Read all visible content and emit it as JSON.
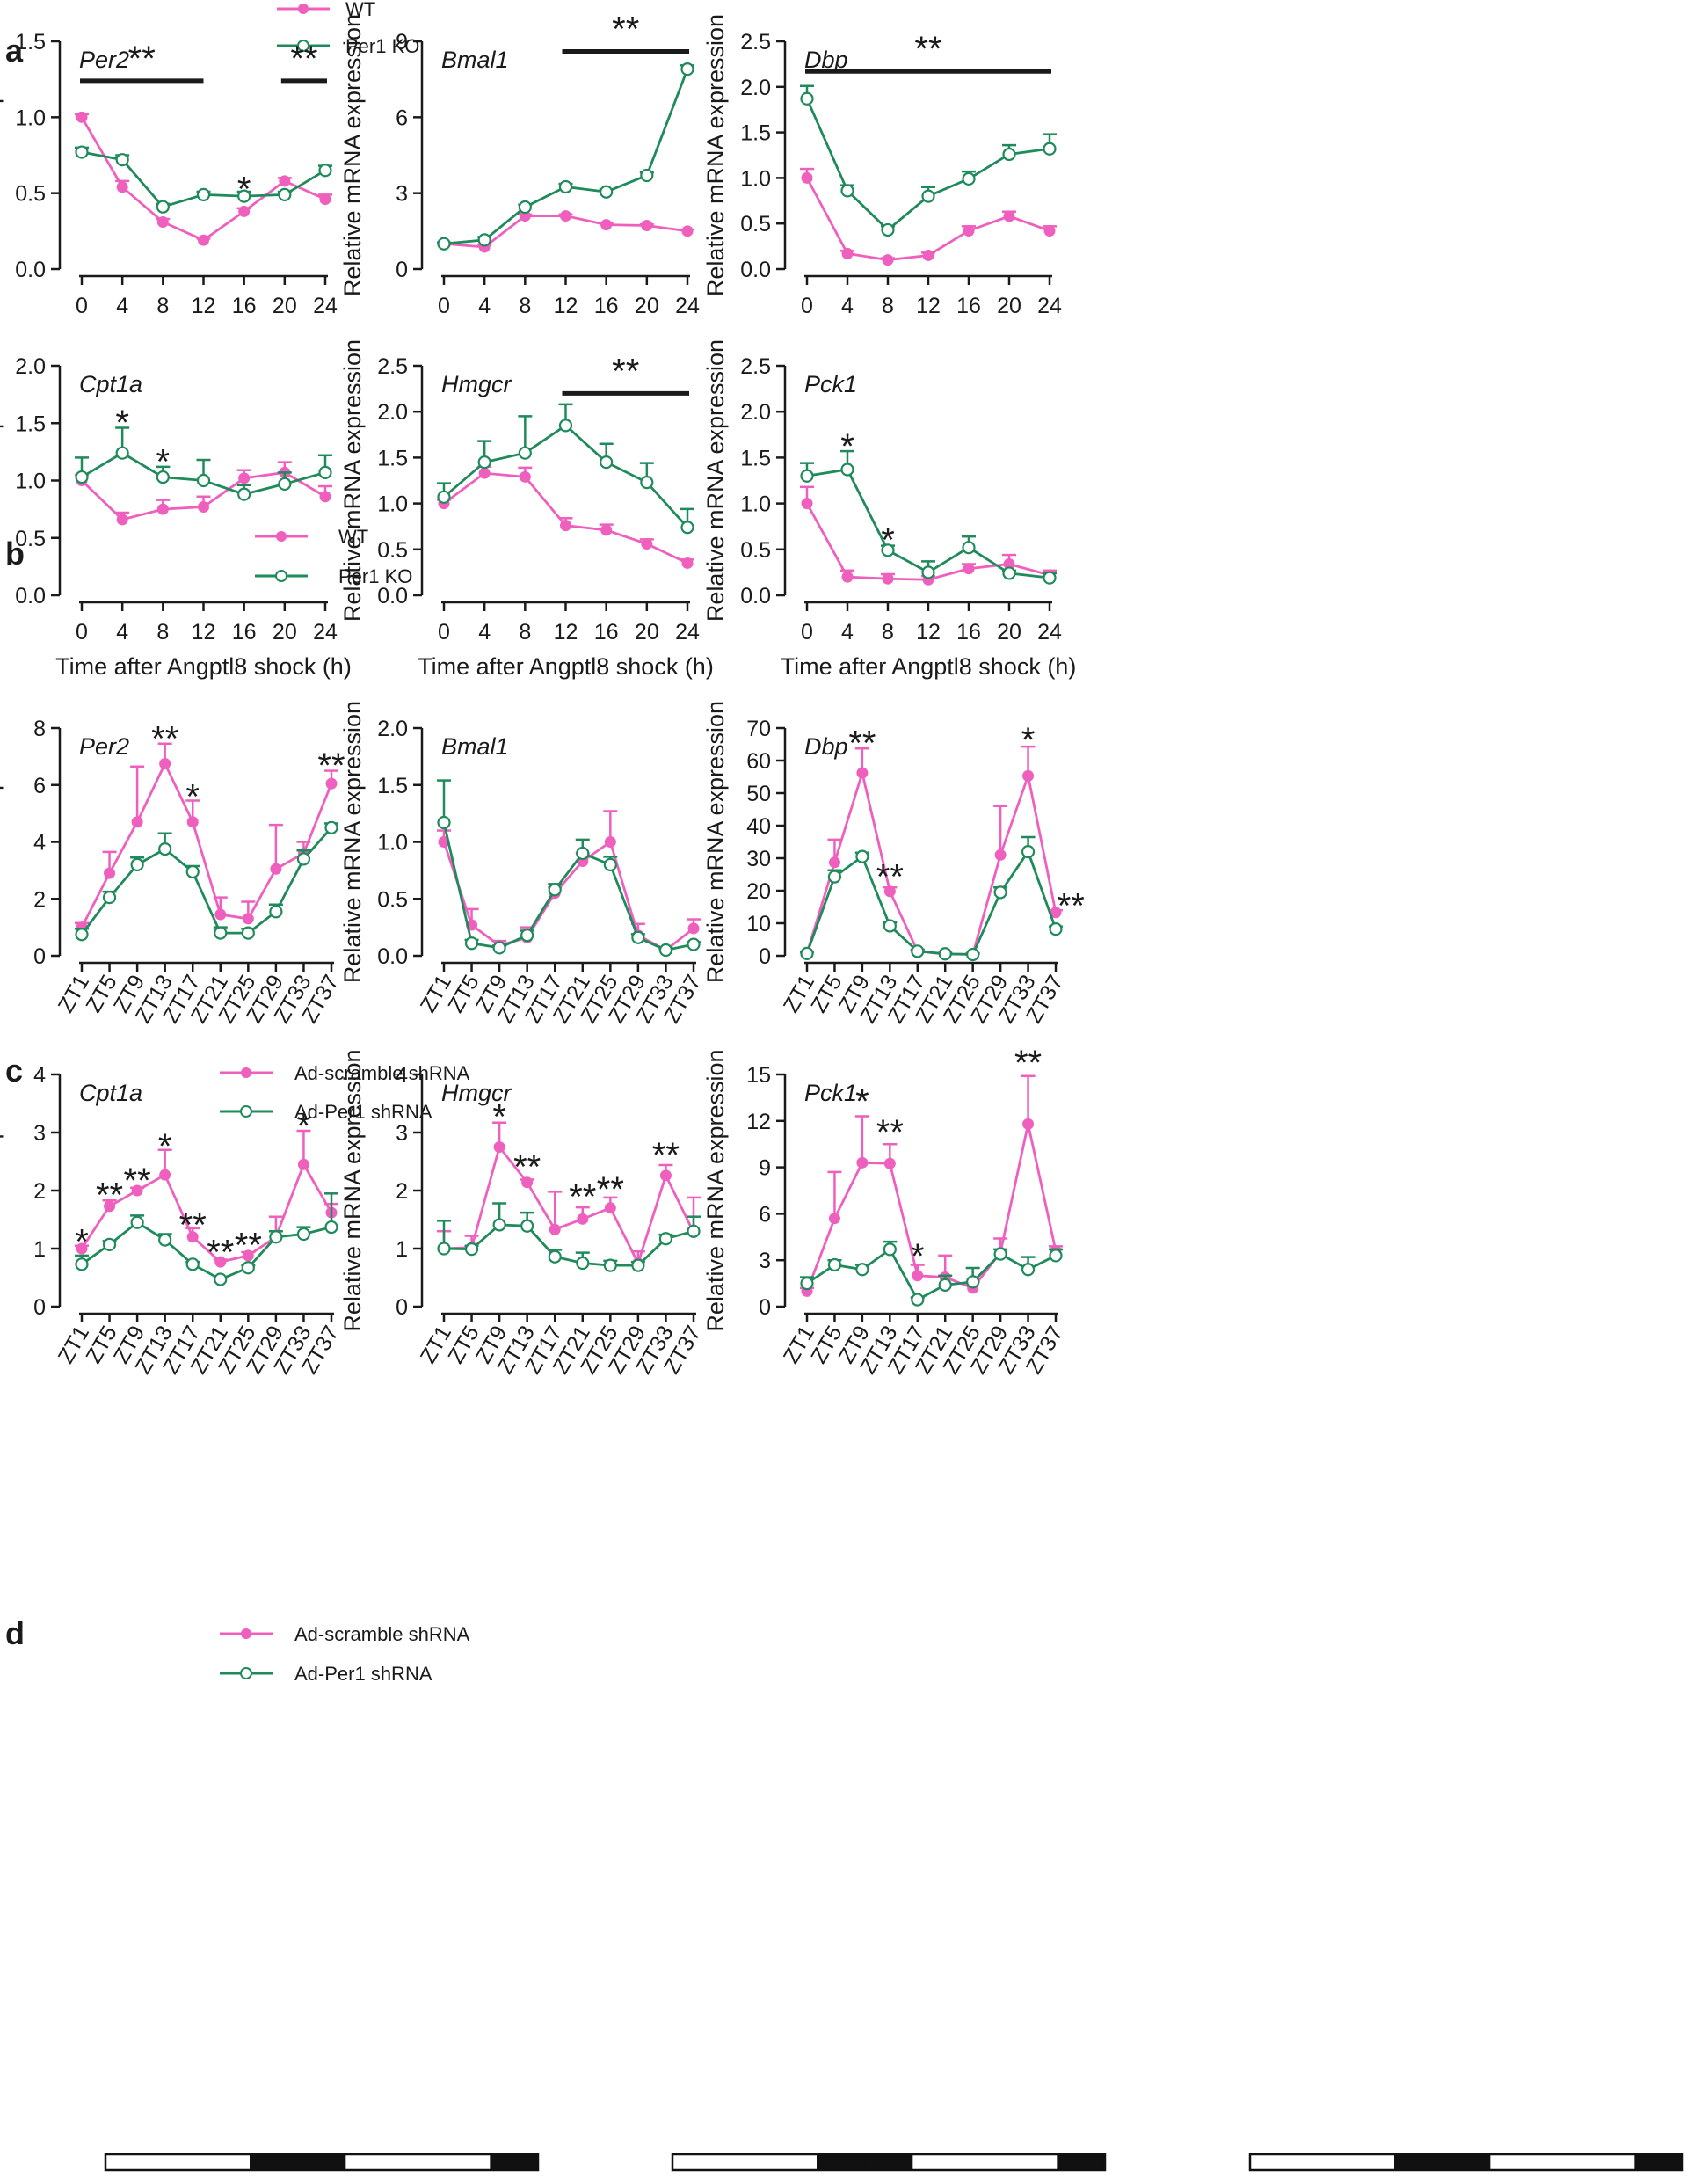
{
  "colors": {
    "wt": "#ee5fbe",
    "ko": "#1f8a5a",
    "axis": "#1a1a1a"
  },
  "panel_labels": [
    "a",
    "b",
    "c",
    "d"
  ],
  "legends": {
    "ab": [
      "WT",
      "Per1 KO"
    ],
    "cd": [
      "Ad-scramble shRNA",
      "Ad-Per1 shRNA"
    ]
  },
  "ylabel": "Relative mRNA expression",
  "xlabel_ab": "Time after Angptl8 shock (h)",
  "chart_data": [
    {
      "type": "line",
      "panel": "a",
      "title": "Per2",
      "categories": [
        "0",
        "4",
        "8",
        "12",
        "16",
        "20",
        "24"
      ],
      "ylim": [
        0,
        1.5
      ],
      "yticks": [
        "0.0",
        "0.5",
        "1.0",
        "1.5"
      ],
      "series": [
        {
          "name": "WT",
          "values": [
            1.0,
            0.54,
            0.31,
            0.19,
            0.38,
            0.58,
            0.46
          ],
          "err": [
            0.02,
            0.04,
            0.02,
            0.01,
            0.02,
            0.02,
            0.03
          ]
        },
        {
          "name": "Per1 KO",
          "values": [
            0.77,
            0.72,
            0.41,
            0.49,
            0.48,
            0.49,
            0.65
          ],
          "err": [
            0.03,
            0.03,
            0.02,
            0.02,
            0.03,
            0.02,
            0.03
          ]
        }
      ],
      "annotations": [
        {
          "text": "**",
          "type": "bar",
          "from": 0,
          "to": 3,
          "y": 1.24
        },
        {
          "text": "**",
          "type": "bar",
          "from": 5,
          "to": 6,
          "y": 1.24
        },
        {
          "text": "*",
          "type": "point",
          "at": 4,
          "y": 0.53
        }
      ]
    },
    {
      "type": "line",
      "panel": "a",
      "title": "Bmal1",
      "categories": [
        "0",
        "4",
        "8",
        "12",
        "16",
        "20",
        "24"
      ],
      "ylim": [
        0,
        9
      ],
      "yticks": [
        "0",
        "3",
        "6",
        "9"
      ],
      "series": [
        {
          "name": "WT",
          "values": [
            1.0,
            0.87,
            2.1,
            2.1,
            1.75,
            1.72,
            1.5
          ],
          "err": [
            0.05,
            0.08,
            0.06,
            0.06,
            0.05,
            0.05,
            0.06
          ]
        },
        {
          "name": "Per1 KO",
          "values": [
            1.0,
            1.15,
            2.45,
            3.25,
            3.05,
            3.7,
            7.9
          ],
          "err": [
            0.05,
            0.12,
            0.1,
            0.12,
            0.1,
            0.12,
            0.15
          ]
        }
      ],
      "annotations": [
        {
          "text": "**",
          "type": "bar",
          "from": 3,
          "to": 6,
          "y": 8.6
        }
      ]
    },
    {
      "type": "line",
      "panel": "a",
      "title": "Dbp",
      "categories": [
        "0",
        "4",
        "8",
        "12",
        "16",
        "20",
        "24"
      ],
      "ylim": [
        0,
        2.5
      ],
      "yticks": [
        "0.0",
        "0.5",
        "1.0",
        "1.5",
        "2.0",
        "2.5"
      ],
      "series": [
        {
          "name": "WT",
          "values": [
            1.0,
            0.17,
            0.1,
            0.15,
            0.42,
            0.58,
            0.42
          ],
          "err": [
            0.1,
            0.03,
            0.02,
            0.03,
            0.05,
            0.05,
            0.05
          ]
        },
        {
          "name": "Per1 KO",
          "values": [
            1.87,
            0.86,
            0.43,
            0.8,
            0.99,
            1.26,
            1.32
          ],
          "err": [
            0.14,
            0.06,
            0.04,
            0.1,
            0.08,
            0.1,
            0.16
          ]
        }
      ],
      "annotations": [
        {
          "text": "**",
          "type": "bar",
          "from": 0,
          "to": 6,
          "y": 2.17
        }
      ]
    },
    {
      "type": "line",
      "panel": "b",
      "title": "Cpt1a",
      "categories": [
        "0",
        "4",
        "8",
        "12",
        "16",
        "20",
        "24"
      ],
      "xlabel": "Time after Angptl8 shock (h)",
      "ylim": [
        0,
        2.0
      ],
      "yticks": [
        "0.0",
        "0.5",
        "1.0",
        "1.5",
        "2.0"
      ],
      "series": [
        {
          "name": "WT",
          "values": [
            1.0,
            0.66,
            0.75,
            0.77,
            1.02,
            1.07,
            0.86
          ],
          "err": [
            0.05,
            0.06,
            0.08,
            0.09,
            0.07,
            0.09,
            0.09
          ]
        },
        {
          "name": "Per1 KO",
          "values": [
            1.03,
            1.24,
            1.03,
            1.0,
            0.88,
            0.97,
            1.07
          ],
          "err": [
            0.17,
            0.22,
            0.09,
            0.18,
            0.08,
            0.1,
            0.15
          ]
        }
      ],
      "annotations": [
        {
          "text": "*",
          "type": "point",
          "at": 1,
          "y": 1.51
        },
        {
          "text": "*",
          "type": "point",
          "at": 2,
          "y": 1.17
        }
      ]
    },
    {
      "type": "line",
      "panel": "b",
      "title": "Hmgcr",
      "categories": [
        "0",
        "4",
        "8",
        "12",
        "16",
        "20",
        "24"
      ],
      "xlabel": "Time after Angptl8 shock (h)",
      "ylim": [
        0,
        2.5
      ],
      "yticks": [
        "0.0",
        "0.5",
        "1.0",
        "1.5",
        "2.0",
        "2.5"
      ],
      "series": [
        {
          "name": "WT",
          "values": [
            1.0,
            1.33,
            1.29,
            0.76,
            0.71,
            0.56,
            0.35
          ],
          "err": [
            0.04,
            0.07,
            0.1,
            0.08,
            0.06,
            0.05,
            0.04
          ]
        },
        {
          "name": "Per1 KO",
          "values": [
            1.07,
            1.45,
            1.55,
            1.85,
            1.45,
            1.23,
            0.74
          ],
          "err": [
            0.15,
            0.23,
            0.4,
            0.23,
            0.2,
            0.21,
            0.2
          ]
        }
      ],
      "annotations": [
        {
          "text": "**",
          "type": "bar",
          "from": 3,
          "to": 6,
          "y": 2.2
        }
      ]
    },
    {
      "type": "line",
      "panel": "b",
      "title": "Pck1",
      "categories": [
        "0",
        "4",
        "8",
        "12",
        "16",
        "20",
        "24"
      ],
      "xlabel": "Time after Angptl8 shock (h)",
      "ylim": [
        0,
        2.5
      ],
      "yticks": [
        "0.0",
        "0.5",
        "1.0",
        "1.5",
        "2.0",
        "2.5"
      ],
      "series": [
        {
          "name": "WT",
          "values": [
            1.0,
            0.2,
            0.18,
            0.17,
            0.29,
            0.34,
            0.22
          ],
          "err": [
            0.18,
            0.07,
            0.05,
            0.04,
            0.05,
            0.1,
            0.05
          ]
        },
        {
          "name": "Per1 KO",
          "values": [
            1.3,
            1.37,
            0.49,
            0.25,
            0.52,
            0.24,
            0.19
          ],
          "err": [
            0.14,
            0.2,
            0.05,
            0.12,
            0.12,
            0.03,
            0.05
          ]
        }
      ],
      "annotations": [
        {
          "text": "*",
          "type": "point",
          "at": 1,
          "y": 1.63
        },
        {
          "text": "*",
          "type": "point",
          "at": 2,
          "y": 0.61
        }
      ]
    },
    {
      "type": "line",
      "panel": "c",
      "title": "Per2",
      "categories": [
        "ZT1",
        "ZT5",
        "ZT9",
        "ZT13",
        "ZT17",
        "ZT21",
        "ZT25",
        "ZT29",
        "ZT33",
        "ZT37"
      ],
      "ylim": [
        0,
        8
      ],
      "yticks": [
        "0",
        "2",
        "4",
        "6",
        "8"
      ],
      "series": [
        {
          "name": "Ad-scramble shRNA",
          "values": [
            1.0,
            2.9,
            4.7,
            6.75,
            4.7,
            1.45,
            1.3,
            3.05,
            3.6,
            6.05
          ],
          "err": [
            0.15,
            0.75,
            1.95,
            0.7,
            0.75,
            0.6,
            0.6,
            1.55,
            0.4,
            0.45
          ]
        },
        {
          "name": "Ad-Per1 shRNA",
          "values": [
            0.75,
            2.05,
            3.2,
            3.75,
            2.95,
            0.8,
            0.8,
            1.55,
            3.4,
            4.5
          ],
          "err": [
            0.2,
            0.2,
            0.25,
            0.55,
            0.2,
            0.2,
            0.15,
            0.25,
            0.3,
            0.15
          ]
        }
      ],
      "annotations": [
        {
          "text": "**",
          "type": "point",
          "at": 3,
          "y": 7.65
        },
        {
          "text": "*",
          "type": "point",
          "at": 4,
          "y": 5.6
        },
        {
          "text": "**",
          "type": "point",
          "at": 9,
          "y": 6.7
        }
      ]
    },
    {
      "type": "line",
      "panel": "c",
      "title": "Bmal1",
      "categories": [
        "ZT1",
        "ZT5",
        "ZT9",
        "ZT13",
        "ZT17",
        "ZT21",
        "ZT25",
        "ZT29",
        "ZT33",
        "ZT37"
      ],
      "ylim": [
        0,
        2.0
      ],
      "yticks": [
        "0.0",
        "0.5",
        "1.0",
        "1.5",
        "2.0"
      ],
      "series": [
        {
          "name": "Ad-scramble shRNA",
          "values": [
            1.0,
            0.27,
            0.09,
            0.16,
            0.55,
            0.83,
            1.0,
            0.18,
            0.05,
            0.24
          ],
          "err": [
            0.1,
            0.14,
            0.04,
            0.09,
            0.05,
            0.07,
            0.27,
            0.1,
            0.02,
            0.08
          ]
        },
        {
          "name": "Ad-Per1 shRNA",
          "values": [
            1.17,
            0.11,
            0.07,
            0.18,
            0.58,
            0.9,
            0.8,
            0.16,
            0.05,
            0.1
          ],
          "err": [
            0.37,
            0.03,
            0.02,
            0.04,
            0.05,
            0.12,
            0.07,
            0.03,
            0.01,
            0.02
          ]
        }
      ],
      "annotations": []
    },
    {
      "type": "line",
      "panel": "c",
      "title": "Dbp",
      "categories": [
        "ZT1",
        "ZT5",
        "ZT9",
        "ZT13",
        "ZT17",
        "ZT21",
        "ZT25",
        "ZT29",
        "ZT33",
        "ZT37"
      ],
      "ylim": [
        0,
        70
      ],
      "yticks": [
        "0",
        "10",
        "20",
        "30",
        "40",
        "50",
        "60",
        "70"
      ],
      "series": [
        {
          "name": "Ad-scramble shRNA",
          "values": [
            0.8,
            28.7,
            56.2,
            19.8,
            1.4,
            0.5,
            0.5,
            31.0,
            55.3,
            13.3
          ],
          "err": [
            0.5,
            7.0,
            7.5,
            1.2,
            0.5,
            0.3,
            0.3,
            15.0,
            9.0,
            0.7
          ]
        },
        {
          "name": "Ad-Per1 shRNA",
          "values": [
            0.7,
            24.3,
            30.5,
            9.2,
            1.4,
            0.6,
            0.4,
            19.5,
            32.0,
            8.2
          ],
          "err": [
            0.4,
            2.0,
            1.2,
            1.0,
            0.5,
            0.3,
            0.3,
            1.5,
            4.5,
            0.8
          ]
        }
      ],
      "annotations": [
        {
          "text": "**",
          "type": "point",
          "at": 2,
          "y": 65.5
        },
        {
          "text": "**",
          "type": "point",
          "at": 3,
          "y": 24.5
        },
        {
          "text": "*",
          "type": "point",
          "at": 8,
          "y": 66.5
        },
        {
          "text": "**",
          "type": "point",
          "at": 9.55,
          "y": 15.5
        }
      ]
    },
    {
      "type": "line",
      "panel": "d",
      "title": "Cpt1a",
      "categories": [
        "ZT1",
        "ZT5",
        "ZT9",
        "ZT13",
        "ZT17",
        "ZT21",
        "ZT25",
        "ZT29",
        "ZT33",
        "ZT37"
      ],
      "ylim": [
        0,
        4
      ],
      "yticks": [
        "0",
        "1",
        "2",
        "3",
        "4"
      ],
      "series": [
        {
          "name": "Ad-scramble shRNA",
          "values": [
            1.0,
            1.73,
            2.0,
            2.27,
            1.2,
            0.77,
            0.88,
            1.2,
            2.45,
            1.62
          ],
          "err": [
            0.05,
            0.1,
            0.05,
            0.43,
            0.15,
            0.04,
            0.06,
            0.35,
            0.58,
            0.15
          ]
        },
        {
          "name": "Ad-Per1 shRNA",
          "values": [
            0.73,
            1.07,
            1.45,
            1.15,
            0.73,
            0.47,
            0.67,
            1.2,
            1.25,
            1.37
          ],
          "err": [
            0.15,
            0.06,
            0.12,
            0.1,
            0.04,
            0.04,
            0.04,
            0.1,
            0.12,
            0.58
          ]
        }
      ],
      "annotations": [
        {
          "text": "*",
          "type": "point",
          "at": 0,
          "y": 1.13
        },
        {
          "text": "**",
          "type": "point",
          "at": 1,
          "y": 1.93
        },
        {
          "text": "**",
          "type": "point",
          "at": 2,
          "y": 2.18
        },
        {
          "text": "*",
          "type": "point",
          "at": 3,
          "y": 2.77
        },
        {
          "text": "**",
          "type": "point",
          "at": 4,
          "y": 1.42
        },
        {
          "text": "**",
          "type": "point",
          "at": 5,
          "y": 0.95
        },
        {
          "text": "**",
          "type": "point",
          "at": 6,
          "y": 1.07
        },
        {
          "text": "*",
          "type": "point",
          "at": 8,
          "y": 3.12
        }
      ]
    },
    {
      "type": "line",
      "panel": "d",
      "title": "Hmgcr",
      "categories": [
        "ZT1",
        "ZT5",
        "ZT9",
        "ZT13",
        "ZT17",
        "ZT21",
        "ZT25",
        "ZT29",
        "ZT33",
        "ZT37"
      ],
      "ylim": [
        0,
        4
      ],
      "yticks": [
        "0",
        "1",
        "2",
        "3",
        "4"
      ],
      "series": [
        {
          "name": "Ad-scramble shRNA",
          "values": [
            1.0,
            1.02,
            2.75,
            2.14,
            1.33,
            1.51,
            1.7,
            0.75,
            2.26,
            1.28
          ],
          "err": [
            0.3,
            0.2,
            0.42,
            0.05,
            0.65,
            0.2,
            0.18,
            0.2,
            0.18,
            0.6
          ]
        },
        {
          "name": "Ad-Per1 shRNA",
          "values": [
            1.0,
            0.99,
            1.41,
            1.39,
            0.86,
            0.75,
            0.71,
            0.71,
            1.17,
            1.3
          ],
          "err": [
            0.48,
            0.06,
            0.37,
            0.23,
            0.12,
            0.18,
            0.08,
            0.06,
            0.07,
            0.25
          ]
        }
      ],
      "annotations": [
        {
          "text": "*",
          "type": "point",
          "at": 2,
          "y": 3.28
        },
        {
          "text": "**",
          "type": "point",
          "at": 3,
          "y": 2.42
        },
        {
          "text": "**",
          "type": "point",
          "at": 5,
          "y": 1.9
        },
        {
          "text": "**",
          "type": "point",
          "at": 6,
          "y": 2.03
        },
        {
          "text": "**",
          "type": "point",
          "at": 8,
          "y": 2.62
        }
      ]
    },
    {
      "type": "line",
      "panel": "d",
      "title": "Pck1",
      "categories": [
        "ZT1",
        "ZT5",
        "ZT9",
        "ZT13",
        "ZT17",
        "ZT21",
        "ZT25",
        "ZT29",
        "ZT33",
        "ZT37"
      ],
      "ylim": [
        0,
        15
      ],
      "yticks": [
        "0",
        "3",
        "6",
        "9",
        "12",
        "15"
      ],
      "series": [
        {
          "name": "Ad-scramble shRNA",
          "values": [
            1.0,
            5.7,
            9.3,
            9.25,
            2.0,
            1.9,
            1.2,
            3.5,
            11.8,
            3.6
          ],
          "err": [
            0.2,
            3.0,
            3.0,
            1.25,
            0.7,
            1.4,
            0.4,
            0.9,
            3.1,
            0.3
          ]
        },
        {
          "name": "Ad-Per1 shRNA",
          "values": [
            1.5,
            2.7,
            2.4,
            3.7,
            0.45,
            1.4,
            1.6,
            3.4,
            2.4,
            3.3
          ],
          "err": [
            0.4,
            0.3,
            0.3,
            0.5,
            0.15,
            0.6,
            0.9,
            0.3,
            0.8,
            0.4
          ]
        }
      ],
      "annotations": [
        {
          "text": "*",
          "type": "point",
          "at": 2,
          "y": 13.3
        },
        {
          "text": "**",
          "type": "point",
          "at": 3,
          "y": 11.3
        },
        {
          "text": "*",
          "type": "point",
          "at": 4,
          "y": 3.3
        },
        {
          "text": "**",
          "type": "point",
          "at": 8,
          "y": 15.8
        }
      ]
    }
  ],
  "light_dark_bar": [
    "light",
    "light",
    "light",
    "dark",
    "dark",
    "light",
    "light",
    "light",
    "dark"
  ]
}
